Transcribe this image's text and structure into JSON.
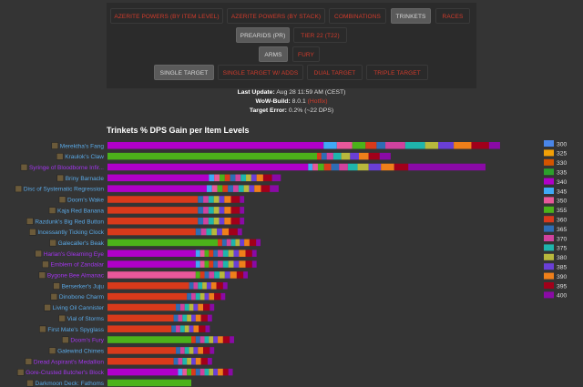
{
  "nav": {
    "row1": [
      "AZERITE POWERS (BY ITEM LEVEL)",
      "AZERITE POWERS (BY STACK)",
      "COMBINATIONS",
      "TRINKETS",
      "RACES"
    ],
    "row2": [
      "PREARIDS (PR)",
      "TIER 22 (T22)"
    ],
    "row3": [
      "ARMS",
      "FURY"
    ],
    "row4": [
      "SINGLE TARGET",
      "SINGLE TARGET W/ ADDS",
      "DUAL TARGET",
      "TRIPLE TARGET"
    ]
  },
  "info": {
    "update_label": "Last Update:",
    "update_value": "Aug 28 11:59 AM (CEST)",
    "build_label": "WoW-Build:",
    "build_value": "8.0.1",
    "build_link": "(Hotfix)",
    "error_label": "Target Error:",
    "error_value": "0.2% (~22 DPS)"
  },
  "colors": {
    "background": "#343434",
    "accent_red": "#d23b2b",
    "item_blue": "#5aa9e6",
    "item_epic": "#a335ee"
  },
  "chart_data": {
    "type": "bar",
    "orientation": "horizontal",
    "stacked": true,
    "title": "Trinkets % DPS Gain per Item Levels",
    "legend_position": "right",
    "xlim": [
      0,
      9.5
    ],
    "item_levels": [
      "300",
      "325",
      "330",
      "335",
      "340",
      "345",
      "350",
      "355",
      "360",
      "365",
      "370",
      "375",
      "380",
      "385",
      "390",
      "395",
      "400"
    ],
    "level_colors": [
      "#4a86e8",
      "#f2a007",
      "#d35400",
      "#2ca02c",
      "#b000c8",
      "#3fa9f5",
      "#e8589a",
      "#4cb21a",
      "#d93a1b",
      "#2e6db4",
      "#d0429e",
      "#1fb5ac",
      "#b8b83c",
      "#6a3fd6",
      "#ef7f1a",
      "#a1001a",
      "#8a0aa6"
    ],
    "rows": [
      {
        "name": "Merektha's Fang",
        "rarity": "rare",
        "icon": "fang-icon",
        "values": [
          0,
          0,
          0,
          0,
          4.9,
          0.3,
          0.35,
          0.3,
          0.25,
          0.2,
          0.45,
          0.45,
          0.3,
          0.35,
          0.4,
          0.4,
          0.25
        ]
      },
      {
        "name": "Kraulok's Claw",
        "rarity": "rare",
        "icon": "claw-icon",
        "values": [
          0,
          0,
          0,
          0,
          0,
          0,
          0,
          4.75,
          0.1,
          0.12,
          0.15,
          0.18,
          0.2,
          0.2,
          0.22,
          0.25,
          0.25
        ]
      },
      {
        "name": "Syringe of Bloodborne Infir...",
        "rarity": "epic",
        "icon": "syringe-icon",
        "values": [
          0,
          0,
          0,
          0,
          4.55,
          0.1,
          0.12,
          0.14,
          0.16,
          0.18,
          0.2,
          0.22,
          0.25,
          0.28,
          0.3,
          0.32,
          1.75
        ]
      },
      {
        "name": "Briny Barnacle",
        "rarity": "rare",
        "icon": "barnacle-icon",
        "values": [
          0,
          0,
          0,
          0,
          2.3,
          0.12,
          0.12,
          0.12,
          0.12,
          0.12,
          0.12,
          0.12,
          0.12,
          0.12,
          0.15,
          0.2,
          0.2
        ]
      },
      {
        "name": "Disc of Systematic Regression",
        "rarity": "rare",
        "icon": "disc-icon",
        "values": [
          0,
          0,
          0,
          0,
          2.25,
          0.12,
          0.12,
          0.12,
          0.12,
          0.12,
          0.12,
          0.12,
          0.12,
          0.12,
          0.15,
          0.2,
          0.2
        ]
      },
      {
        "name": "Doom's Wake",
        "rarity": "rare",
        "icon": "mushroom-icon",
        "values": [
          0,
          0,
          0,
          0,
          0,
          0,
          0,
          0,
          2.05,
          0.12,
          0.12,
          0.12,
          0.12,
          0.12,
          0.15,
          0.2,
          0.1
        ]
      },
      {
        "name": "Kaja Red Banana",
        "rarity": "rare",
        "icon": "banana-icon",
        "values": [
          0,
          0,
          0,
          0,
          0,
          0,
          0,
          0,
          2.05,
          0.12,
          0.12,
          0.12,
          0.12,
          0.12,
          0.15,
          0.2,
          0.1
        ]
      },
      {
        "name": "Razdunk's Big Red Button",
        "rarity": "rare",
        "icon": "button-icon",
        "values": [
          0,
          0,
          0,
          0,
          0,
          0,
          0,
          0,
          2.05,
          0.12,
          0.12,
          0.12,
          0.12,
          0.12,
          0.15,
          0.2,
          0.1
        ]
      },
      {
        "name": "Incessantly Ticking Clock",
        "rarity": "rare",
        "icon": "clock-icon",
        "values": [
          0,
          0,
          0,
          0,
          0,
          0,
          0,
          0,
          2.0,
          0.12,
          0.12,
          0.12,
          0.12,
          0.12,
          0.15,
          0.2,
          0.1
        ]
      },
      {
        "name": "Galecaller's Beak",
        "rarity": "rare",
        "icon": "beak-icon",
        "values": [
          0,
          0,
          0,
          0,
          0,
          0,
          0,
          2.5,
          0.1,
          0.1,
          0.1,
          0.1,
          0.1,
          0.1,
          0.12,
          0.15,
          0.1
        ]
      },
      {
        "name": "Harlan's Gleaming Eye",
        "rarity": "epic",
        "icon": "eye-icon",
        "values": [
          0,
          0,
          0,
          0,
          2.0,
          0.1,
          0.1,
          0.1,
          0.1,
          0.1,
          0.12,
          0.12,
          0.12,
          0.12,
          0.15,
          0.15,
          0.1
        ]
      },
      {
        "name": "Emblem of Zandalar",
        "rarity": "epic",
        "icon": "emblem-icon",
        "values": [
          0,
          0,
          0,
          0,
          2.0,
          0.1,
          0.1,
          0.1,
          0.1,
          0.1,
          0.12,
          0.12,
          0.12,
          0.12,
          0.15,
          0.15,
          0.1
        ]
      },
      {
        "name": "Bygone Bee Almanac",
        "rarity": "epic",
        "icon": "almanac-icon",
        "values": [
          0,
          0,
          0,
          0,
          0,
          0,
          2.0,
          0.1,
          0.1,
          0.1,
          0.12,
          0.12,
          0.12,
          0.12,
          0.15,
          0.15,
          0.1
        ]
      },
      {
        "name": "Berserker's Juju",
        "rarity": "rare",
        "icon": "juju-icon",
        "values": [
          0,
          0,
          0,
          0,
          0,
          0,
          0,
          0,
          1.85,
          0.1,
          0.1,
          0.1,
          0.1,
          0.1,
          0.12,
          0.15,
          0.1
        ]
      },
      {
        "name": "Dinobone Charm",
        "rarity": "rare",
        "icon": "charm-icon",
        "values": [
          0,
          0,
          0,
          0,
          0,
          0,
          0,
          0,
          1.8,
          0.1,
          0.1,
          0.1,
          0.1,
          0.1,
          0.12,
          0.15,
          0.1
        ]
      },
      {
        "name": "Living Oil Cannister",
        "rarity": "rare",
        "icon": "oil-icon",
        "values": [
          0,
          0,
          0,
          0,
          0,
          0,
          0,
          0,
          1.55,
          0.1,
          0.1,
          0.1,
          0.1,
          0.1,
          0.12,
          0.15,
          0.1
        ]
      },
      {
        "name": "Vial of Storms",
        "rarity": "rare",
        "icon": "vial-icon",
        "values": [
          0,
          0,
          0,
          0,
          0,
          0,
          0,
          0,
          1.5,
          0.1,
          0.1,
          0.1,
          0.1,
          0.1,
          0.12,
          0.15,
          0.1
        ]
      },
      {
        "name": "First Mate's Spyglass",
        "rarity": "rare",
        "icon": "spyglass-icon",
        "values": [
          0,
          0,
          0,
          0,
          0,
          0,
          0,
          0,
          1.45,
          0.1,
          0.1,
          0.1,
          0.1,
          0.1,
          0.12,
          0.15,
          0.1
        ]
      },
      {
        "name": "Doom's Fury",
        "rarity": "epic",
        "icon": "fury-icon",
        "values": [
          0,
          0,
          0,
          0,
          0,
          0,
          0,
          1.9,
          0.1,
          0.1,
          0.1,
          0.1,
          0.1,
          0.1,
          0.12,
          0.15,
          0.1
        ]
      },
      {
        "name": "Galewind Chimes",
        "rarity": "rare",
        "icon": "chimes-icon",
        "values": [
          0,
          0,
          0,
          0,
          0,
          0,
          0,
          0,
          1.55,
          0.1,
          0.1,
          0.1,
          0.1,
          0.1,
          0.12,
          0.15,
          0.1
        ]
      },
      {
        "name": "Dread Aspirant's Medallion",
        "rarity": "epic",
        "icon": "medallion-icon",
        "values": [
          0,
          0,
          0,
          0,
          0,
          0,
          0,
          0,
          1.5,
          0.1,
          0.1,
          0.1,
          0.1,
          0.1,
          0.12,
          0.15,
          0.1
        ]
      },
      {
        "name": "Gore-Crusted Butcher's Block",
        "rarity": "epic",
        "icon": "block-icon",
        "values": [
          0,
          0,
          0,
          0,
          1.6,
          0.1,
          0.1,
          0.1,
          0.1,
          0.1,
          0.1,
          0.1,
          0.1,
          0.1,
          0.12,
          0.12,
          0.1
        ]
      },
      {
        "name": "Darkmoon Deck: Fathoms",
        "rarity": "rare",
        "icon": "deck-icon",
        "values": [
          0,
          0,
          0,
          0,
          0,
          0,
          0,
          1.9,
          0,
          0,
          0,
          0,
          0,
          0,
          0,
          0,
          0
        ]
      }
    ]
  }
}
